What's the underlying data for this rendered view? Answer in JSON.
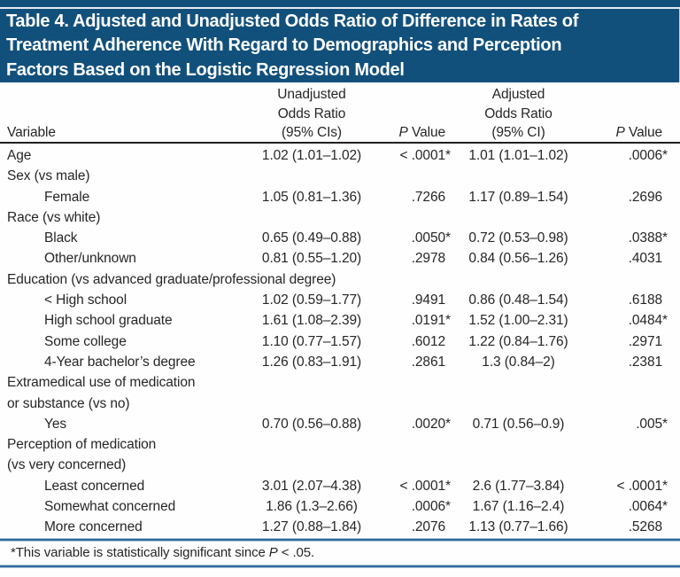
{
  "title": "Table 4. Adjusted and Unadjusted Odds Ratio of Difference in Rates of\nTreatment Adherence With Regard to Demographics and Perception\nFactors Based on the Logistic Regression Model",
  "colors": {
    "title_bar_bg": "#12507c",
    "title_text": "#ffffff",
    "rule_blue": "#30689f",
    "header_rule_black": "#231f20",
    "body_text": "#262626",
    "background": "#fdfefd"
  },
  "table": {
    "headers": {
      "variable": "Variable",
      "unadjusted_or": "Unadjusted\nOdds Ratio\n(95% CIs)",
      "p_value_1": {
        "italic": "P",
        "rest": " Value"
      },
      "adjusted_or": "Adjusted\nOdds Ratio\n(95% CI)",
      "p_value_2": {
        "italic": "P",
        "rest": " Value"
      }
    },
    "rows": [
      {
        "type": "data",
        "indent": 0,
        "label": "Age",
        "uor": "1.02 (1.01–1.02)",
        "p1": "< .0001*",
        "aor": "1.01 (1.01–1.02)",
        "p2": ".0006*"
      },
      {
        "type": "group",
        "label": "Sex (vs male)"
      },
      {
        "type": "data",
        "indent": 1,
        "label": "Female",
        "uor": "1.05 (0.81–1.36)",
        "p1": ".7266",
        "aor": "1.17 (0.89–1.54)",
        "p2": ".2696"
      },
      {
        "type": "group",
        "label": "Race (vs white)"
      },
      {
        "type": "data",
        "indent": 1,
        "label": "Black",
        "uor": "0.65 (0.49–0.88)",
        "p1": ".0050*",
        "aor": "0.72 (0.53–0.98)",
        "p2": ".0388*"
      },
      {
        "type": "data",
        "indent": 1,
        "label": "Other/unknown",
        "uor": "0.81 (0.55–1.20)",
        "p1": ".2978",
        "aor": "0.84 (0.56–1.26)",
        "p2": ".4031"
      },
      {
        "type": "group",
        "label": "Education (vs advanced graduate/professional degree)"
      },
      {
        "type": "data",
        "indent": 1,
        "label": "< High school",
        "uor": "1.02 (0.59–1.77)",
        "p1": ".9491",
        "aor": "0.86 (0.48–1.54)",
        "p2": ".6188"
      },
      {
        "type": "data",
        "indent": 1,
        "label": "High school graduate",
        "uor": "1.61 (1.08–2.39)",
        "p1": ".0191*",
        "aor": "1.52 (1.00–2.31)",
        "p2": ".0484*"
      },
      {
        "type": "data",
        "indent": 1,
        "label": "Some college",
        "uor": "1.10 (0.77–1.57)",
        "p1": ".6012",
        "aor": "1.22 (0.84–1.76)",
        "p2": ".2971"
      },
      {
        "type": "data",
        "indent": 1,
        "label": "4-Year bachelor’s degree",
        "uor": "1.26 (0.83–1.91)",
        "p1": ".2861",
        "aor": "1.3 (0.84–2)",
        "p2": ".2381"
      },
      {
        "type": "group",
        "label": "Extramedical use of medication\nor substance (vs no)"
      },
      {
        "type": "data",
        "indent": 1,
        "label": "Yes",
        "uor": "0.70 (0.56–0.88)",
        "p1": ".0020*",
        "aor": "0.71 (0.56–0.9)",
        "p2": ".005*"
      },
      {
        "type": "group",
        "label": "Perception of medication\n(vs very concerned)"
      },
      {
        "type": "data",
        "indent": 1,
        "label": "Least concerned",
        "uor": "3.01 (2.07–4.38)",
        "p1": "< .0001*",
        "aor": "2.6 (1.77–3.84)",
        "p2": "< .0001*"
      },
      {
        "type": "data",
        "indent": 1,
        "label": "Somewhat concerned",
        "uor": "1.86 (1.3–2.66)",
        "p1": ".0006*",
        "aor": "1.67 (1.16–2.4)",
        "p2": ".0064*"
      },
      {
        "type": "data",
        "indent": 1,
        "label": "More concerned",
        "uor": "1.27 (0.88–1.84)",
        "p1": ".2076",
        "aor": "1.13 (0.77–1.66)",
        "p2": ".5268"
      }
    ]
  },
  "footnote": {
    "before": "*This variable is statistically significant since ",
    "italic": "P",
    "after": " < .05."
  }
}
